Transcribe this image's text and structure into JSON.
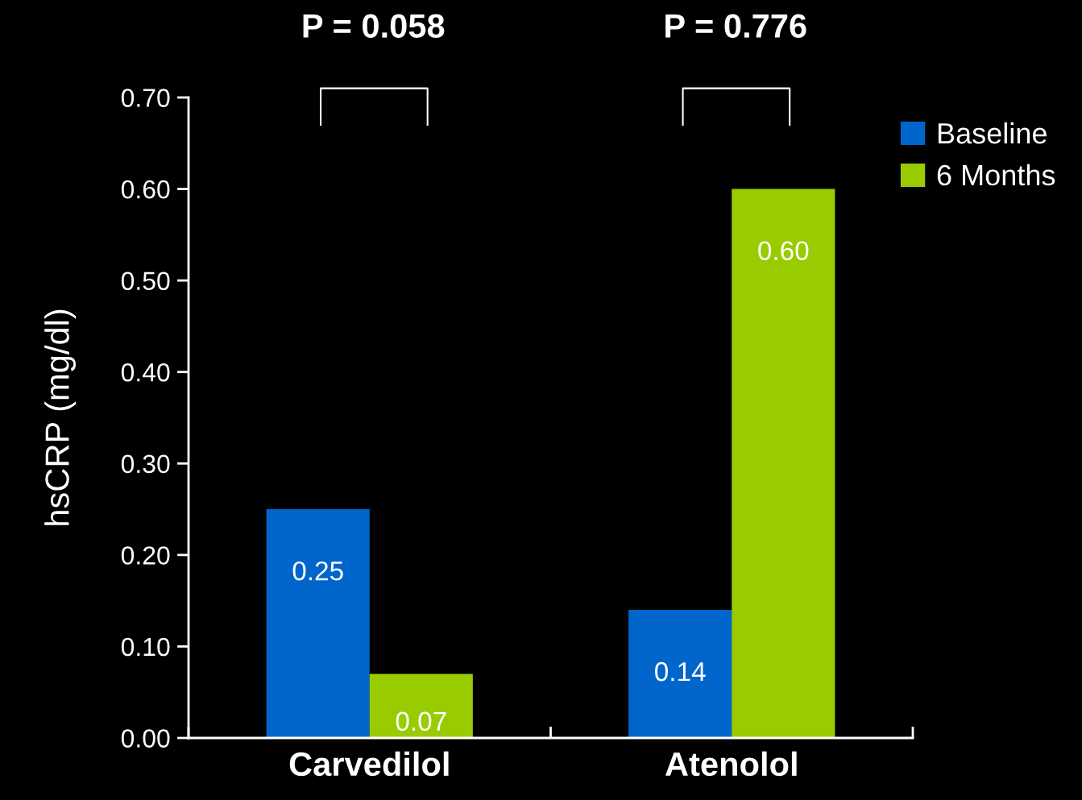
{
  "chart_data": {
    "type": "bar",
    "ylabel": "hsCRP (mg/dl)",
    "categories": [
      "Carvedilol",
      "Atenolol"
    ],
    "series": [
      {
        "name": "Baseline",
        "color": "#0066cc",
        "values": [
          0.25,
          0.14
        ]
      },
      {
        "name": "6 Months",
        "color": "#99cc00",
        "values": [
          0.07,
          0.6
        ]
      }
    ],
    "ylim": [
      0,
      0.7
    ],
    "yticks": [
      {
        "value": 0,
        "label": "0.00"
      },
      {
        "value": 0.1,
        "label": "0.10"
      },
      {
        "value": 0.2,
        "label": "0.20"
      },
      {
        "value": 0.3,
        "label": "0.30"
      },
      {
        "value": 0.4,
        "label": "0.40"
      },
      {
        "value": 0.5,
        "label": "0.50"
      },
      {
        "value": 0.6,
        "label": "0.60"
      },
      {
        "value": 0.7,
        "label": "0.70"
      }
    ],
    "value_labels": [
      [
        "0.25",
        "0.14"
      ],
      [
        "0.07",
        "0.60"
      ]
    ],
    "annotations": [
      "P = 0.058",
      "P = 0.776"
    ],
    "legend": "top right",
    "grid": false
  }
}
